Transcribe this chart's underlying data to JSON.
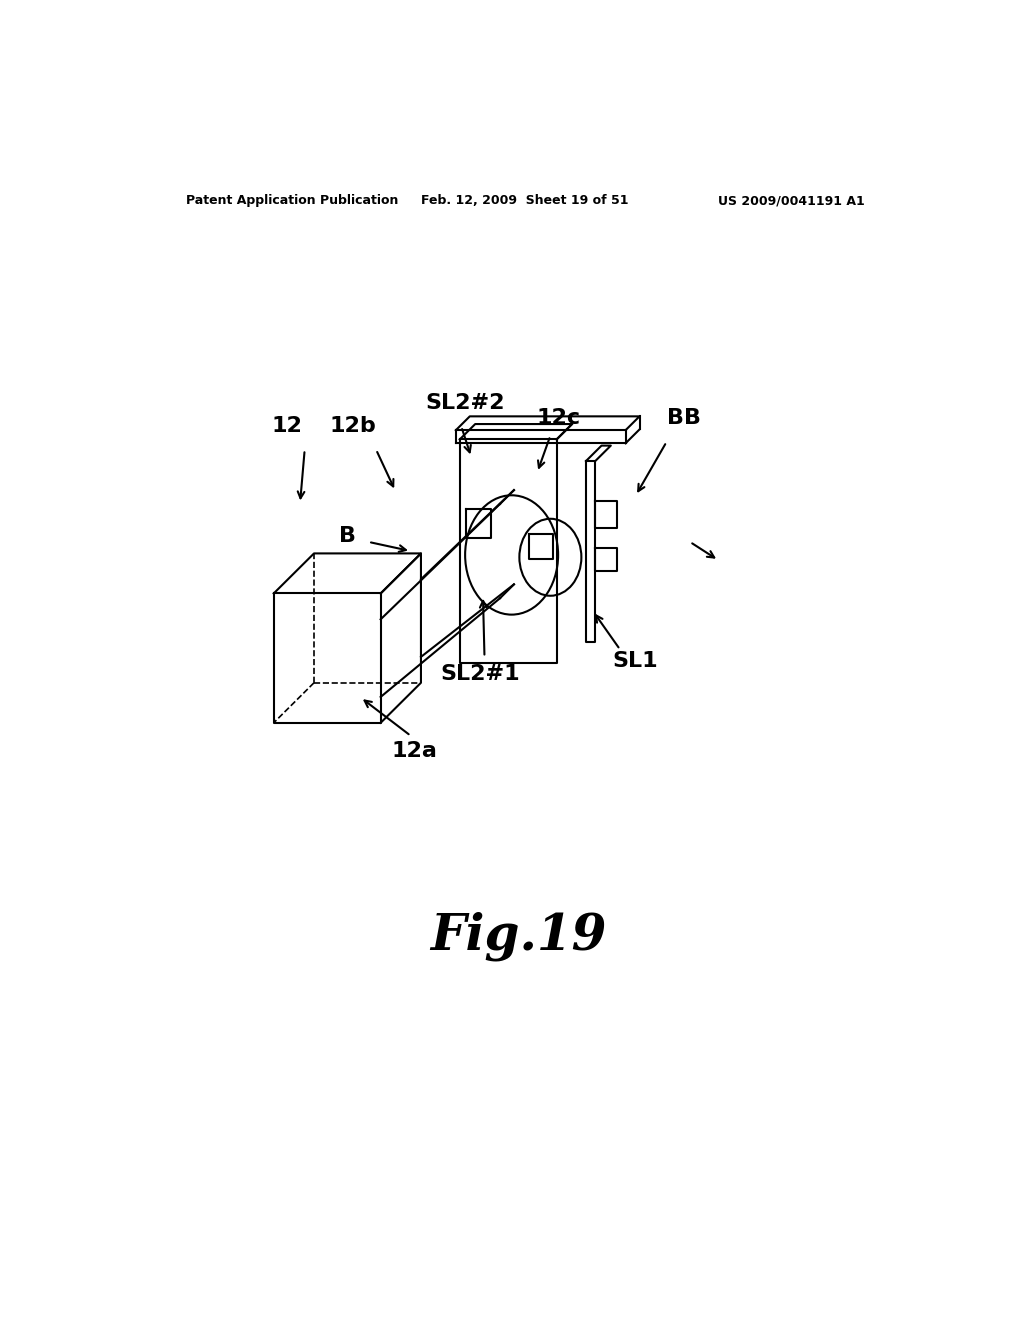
{
  "bg_color": "#ffffff",
  "line_color": "#000000",
  "header_left": "Patent Application Publication",
  "header_mid": "Feb. 12, 2009  Sheet 19 of 51",
  "header_right": "US 2009/0041191 A1",
  "fig_label": "Fig.19"
}
